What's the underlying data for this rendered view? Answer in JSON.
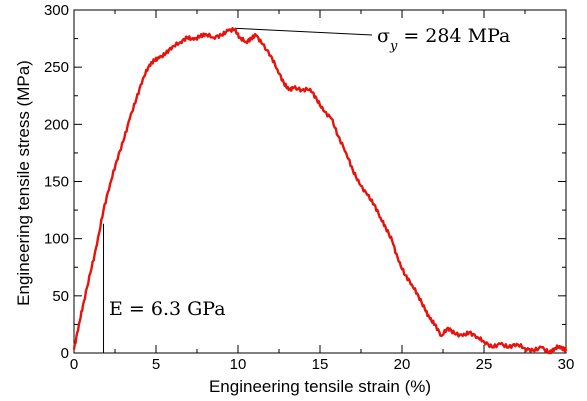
{
  "chart_data": {
    "type": "line",
    "title": "",
    "xlabel": "Engineering tensile strain (%)",
    "ylabel": "Engineering tensile stress (MPa)",
    "xlim": [
      0,
      30
    ],
    "ylim": [
      0,
      300
    ],
    "xticks": [
      "0",
      "5",
      "10",
      "15",
      "20",
      "25",
      "30"
    ],
    "yticks": [
      "0",
      "50",
      "100",
      "150",
      "200",
      "250",
      "300"
    ],
    "grid": false,
    "series": [
      {
        "color": "#e8120c",
        "x": [
          0,
          0.3,
          0.6,
          1.0,
          1.4,
          1.8,
          2.2,
          2.6,
          3.0,
          3.4,
          3.8,
          4.2,
          4.6,
          4.9,
          5.2,
          5.6,
          6.0,
          6.5,
          6.9,
          7.3,
          7.7,
          8.0,
          8.5,
          9.0,
          9.4,
          9.8,
          10.1,
          10.5,
          10.8,
          11.1,
          11.5,
          12.0,
          12.4,
          12.8,
          13.1,
          13.4,
          13.9,
          14.4,
          14.8,
          15.2,
          15.7,
          16.1,
          16.6,
          17.0,
          17.4,
          17.9,
          18.3,
          18.7,
          19.0,
          19.4,
          19.8,
          20.2,
          20.6,
          21.0,
          21.4,
          21.7,
          22.0,
          22.4,
          22.8,
          23.2,
          23.7,
          24.1,
          24.6,
          25.0,
          25.5,
          26.0,
          26.5,
          27.0,
          27.5,
          28.0,
          28.5,
          29.0,
          29.3,
          29.6,
          29.9,
          30.0
        ],
        "y": [
          3,
          25,
          45,
          70,
          95,
          125,
          148,
          168,
          185,
          205,
          222,
          240,
          252,
          256,
          258,
          262,
          268,
          272,
          276,
          274,
          277,
          279,
          276,
          278,
          282,
          283,
          276,
          272,
          275,
          278,
          270,
          260,
          248,
          236,
          230,
          232,
          230,
          231,
          222,
          212,
          205,
          190,
          175,
          160,
          148,
          138,
          130,
          118,
          110,
          98,
          80,
          68,
          60,
          50,
          38,
          30,
          25,
          15,
          22,
          17,
          15,
          18,
          14,
          10,
          5,
          8,
          5,
          8,
          4,
          2,
          5,
          0,
          4,
          6,
          3,
          2
        ]
      }
    ],
    "annotations": [
      {
        "text": "E =  6.3 GPa",
        "x": 2.0,
        "y": 30
      },
      {
        "text": "σ_y  =  284 MPa",
        "x": 17.6,
        "y": 272
      }
    ],
    "yield_point": {
      "x": 9.8,
      "y": 284
    },
    "modulus_triangle": {
      "x0": 0,
      "x1": 1.8,
      "y0": 0,
      "y1": 113
    }
  }
}
